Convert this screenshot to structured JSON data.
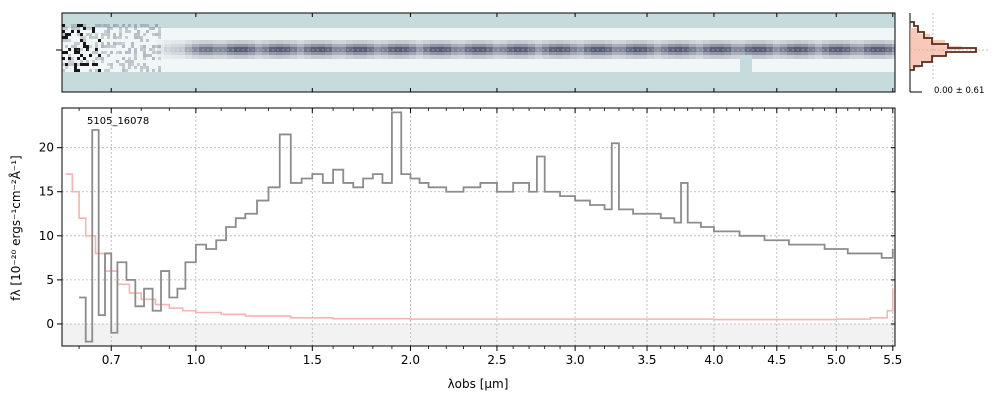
{
  "chart_data": [
    {
      "type": "heatmap",
      "panel": "2d-spectrum",
      "description_shown": "2D spectrum image (trace along wavelength)",
      "colors": {
        "background": "#c6dcdc",
        "trace": "#3a3f5c",
        "noise_dark": "#000000"
      }
    },
    {
      "type": "line",
      "panel": "cross-dispersion-profile",
      "annotation": "0.00 ± 0.61",
      "series": [
        {
          "name": "",
          "color": "#5a2a1a"
        },
        {
          "name": "",
          "color": "#f4a58a"
        }
      ]
    },
    {
      "type": "line",
      "panel": "1d-spectrum",
      "title": "5105_16078",
      "xlabel": "λobs [μm]",
      "ylabel": "fλ [10⁻²⁰ ergs⁻¹cm⁻²Å⁻¹]",
      "xscale": "sqrt",
      "xlim": [
        0.55,
        5.52
      ],
      "ylim": [
        -2.5,
        24.5
      ],
      "grid": true,
      "x_ticks": [
        0.7,
        1.0,
        1.5,
        2.0,
        2.5,
        3.0,
        3.5,
        4.0,
        4.5,
        5.0,
        5.5
      ],
      "x_tick_labels": [
        "0.7",
        "1.0",
        "1.5",
        "2.0",
        "2.5",
        "3.0",
        "3.5",
        "4.0",
        "4.5",
        "5.0",
        "5.5"
      ],
      "y_ticks": [
        0,
        5,
        10,
        15,
        20
      ],
      "y_tick_labels": [
        "0",
        "5",
        "10",
        "15",
        "20"
      ],
      "series": [
        {
          "name": "",
          "style": "steps",
          "color": "#8c8c8c",
          "x": [
            0.6,
            0.62,
            0.64,
            0.66,
            0.68,
            0.7,
            0.72,
            0.75,
            0.78,
            0.81,
            0.84,
            0.87,
            0.9,
            0.93,
            0.96,
            1.0,
            1.04,
            1.08,
            1.12,
            1.16,
            1.2,
            1.25,
            1.3,
            1.35,
            1.4,
            1.45,
            1.5,
            1.55,
            1.6,
            1.65,
            1.7,
            1.75,
            1.8,
            1.85,
            1.9,
            1.95,
            2.0,
            2.05,
            2.1,
            2.2,
            2.3,
            2.4,
            2.5,
            2.6,
            2.7,
            2.75,
            2.8,
            2.9,
            3.0,
            3.1,
            3.2,
            3.25,
            3.3,
            3.4,
            3.5,
            3.6,
            3.7,
            3.75,
            3.8,
            3.9,
            4.0,
            4.1,
            4.2,
            4.3,
            4.4,
            4.5,
            4.6,
            4.7,
            4.8,
            4.9,
            5.0,
            5.1,
            5.2,
            5.3,
            5.4,
            5.5
          ],
          "y": [
            3.0,
            -2.0,
            22.0,
            1.0,
            8.0,
            -1.0,
            7.0,
            5.0,
            2.0,
            4.0,
            1.5,
            6.0,
            3.0,
            4.0,
            7.0,
            9.0,
            8.5,
            9.5,
            11.0,
            12.0,
            12.5,
            14.0,
            15.5,
            21.5,
            16.0,
            16.5,
            17.0,
            16.0,
            17.5,
            16.0,
            15.5,
            16.5,
            17.0,
            16.0,
            24.0,
            17.0,
            16.5,
            16.0,
            15.5,
            15.0,
            15.5,
            16.0,
            15.0,
            16.0,
            15.0,
            19.0,
            15.0,
            14.5,
            14.0,
            13.5,
            13.0,
            20.5,
            13.0,
            12.5,
            12.5,
            12.0,
            11.5,
            16.0,
            11.5,
            11.0,
            10.5,
            10.5,
            10.0,
            10.0,
            9.5,
            9.5,
            9.0,
            9.0,
            9.0,
            8.5,
            8.5,
            8.0,
            8.0,
            8.0,
            7.5,
            8.5
          ]
        },
        {
          "name": "",
          "style": "steps",
          "color": "#f5b5b0",
          "x": [
            0.56,
            0.58,
            0.6,
            0.62,
            0.65,
            0.68,
            0.72,
            0.76,
            0.8,
            0.85,
            0.9,
            0.95,
            1.0,
            1.1,
            1.2,
            1.4,
            1.6,
            2.0,
            2.5,
            3.0,
            3.5,
            4.0,
            4.5,
            5.0,
            5.3,
            5.45,
            5.5
          ],
          "y": [
            17.0,
            15.0,
            12.0,
            10.0,
            8.0,
            6.0,
            4.5,
            3.5,
            2.8,
            2.2,
            1.8,
            1.5,
            1.3,
            1.1,
            0.9,
            0.7,
            0.6,
            0.55,
            0.55,
            0.55,
            0.55,
            0.5,
            0.5,
            0.55,
            0.7,
            1.5,
            4.0
          ]
        }
      ]
    }
  ]
}
